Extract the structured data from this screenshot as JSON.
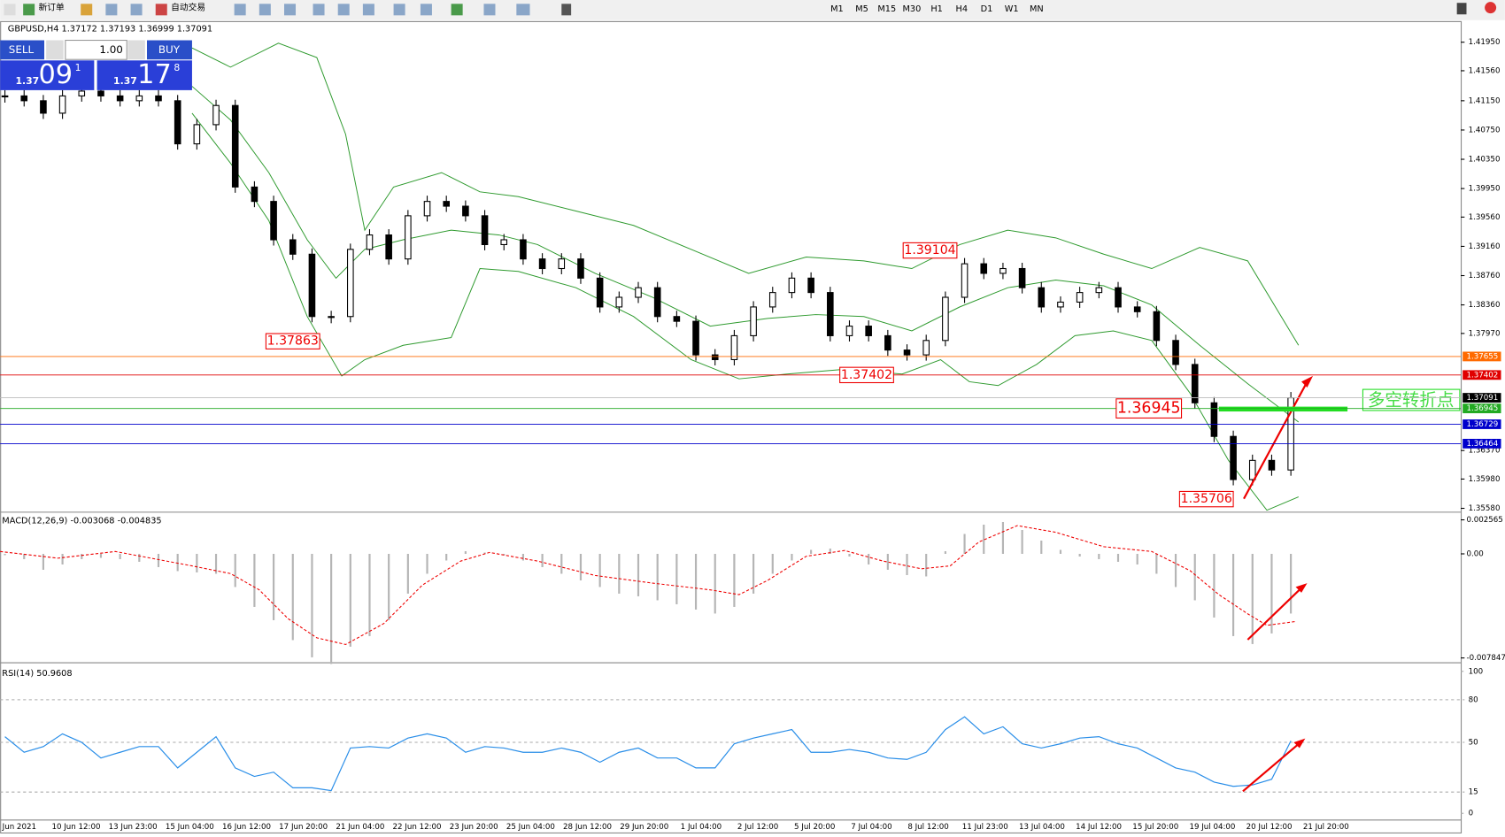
{
  "toolbar": {
    "new_order": "新订单",
    "auto_trading": "自动交易",
    "timeframes": [
      "M1",
      "M5",
      "M15",
      "M30",
      "H1",
      "H4",
      "D1",
      "W1",
      "MN"
    ]
  },
  "trade_panel": {
    "sell": "SELL",
    "buy": "BUY",
    "lots": "1.00",
    "bid_big": "1.37",
    "bid_pips": "09",
    "bid_point": "1",
    "ask_big": "1.37",
    "ask_pips": "17",
    "ask_point": "8"
  },
  "chart": {
    "header": "GBPUSD,H4  1.37172 1.37193 1.36999 1.37091",
    "price_ticks": [
      {
        "value": 1.4195,
        "label": "1.41950"
      },
      {
        "value": 1.4156,
        "label": "1.41560"
      },
      {
        "value": 1.4115,
        "label": "1.41150"
      },
      {
        "value": 1.4075,
        "label": "1.40750"
      },
      {
        "value": 1.4035,
        "label": "1.40350"
      },
      {
        "value": 1.3995,
        "label": "1.39950"
      },
      {
        "value": 1.3956,
        "label": "1.39560"
      },
      {
        "value": 1.3916,
        "label": "1.39160"
      },
      {
        "value": 1.3876,
        "label": "1.38760"
      },
      {
        "value": 1.3836,
        "label": "1.38360"
      },
      {
        "value": 1.3797,
        "label": "1.37970"
      },
      {
        "value": 1.3637,
        "label": "1.36370"
      },
      {
        "value": 1.3598,
        "label": "1.35980"
      },
      {
        "value": 1.3558,
        "label": "1.35580"
      }
    ],
    "closes": [
      1.41216,
      1.4115,
      1.4098,
      1.41216,
      1.41282,
      1.41216,
      1.4115,
      1.41216,
      1.4115,
      1.40561,
      1.40823,
      1.41085,
      1.39971,
      1.39774,
      1.3925,
      1.39053,
      1.38201,
      1.38201,
      1.39119,
      1.39316,
      1.38988,
      1.39578,
      1.39774,
      1.39709,
      1.39578,
      1.39184,
      1.3925,
      1.38988,
      1.38857,
      1.38988,
      1.38726,
      1.38332,
      1.38464,
      1.38595,
      1.38201,
      1.38136,
      1.37677,
      1.37612,
      1.37939,
      1.38332,
      1.38529,
      1.38726,
      1.38529,
      1.37939,
      1.3807,
      1.37939,
      1.37743,
      1.37677,
      1.37874,
      1.38464,
      1.38922,
      1.38791,
      1.38857,
      1.38595,
      1.38332,
      1.38398,
      1.38529,
      1.38595,
      1.38332,
      1.38267,
      1.37874,
      1.37546,
      1.37022,
      1.36563,
      1.35973,
      1.36235,
      1.36104,
      1.37091
    ],
    "levels": [
      {
        "value": 1.37655,
        "label": "1.37655",
        "color": "#ff6a00"
      },
      {
        "value": 1.37402,
        "label": "1.37402",
        "color": "#e00000"
      },
      {
        "value": 1.37091,
        "label": "1.37091",
        "color": "#000000"
      },
      {
        "value": 1.36945,
        "label": "1.36945",
        "color": "#22aa22"
      },
      {
        "value": 1.36729,
        "label": "1.36729",
        "color": "#0000cc"
      },
      {
        "value": 1.36464,
        "label": "1.36464",
        "color": "#0000cc"
      }
    ],
    "annotations": [
      {
        "value": 1.37863,
        "label": "1.37863"
      },
      {
        "value": 1.37402,
        "label": "1.37402"
      },
      {
        "value": 1.39104,
        "label": "1.39104"
      },
      {
        "value": 1.36945,
        "label": "1.36945"
      },
      {
        "value": 1.35706,
        "label": "1.35706"
      }
    ],
    "turning_point": "多空转折点",
    "time_labels": [
      "Jun 2021",
      "10 Jun 12:00",
      "13 Jun 23:00",
      "15 Jun 04:00",
      "16 Jun 12:00",
      "17 Jun 20:00",
      "21 Jun 04:00",
      "22 Jun 12:00",
      "23 Jun 20:00",
      "25 Jun 04:00",
      "28 Jun 12:00",
      "29 Jun 20:00",
      "1 Jul 04:00",
      "2 Jul 12:00",
      "5 Jul 20:00",
      "7 Jul 04:00",
      "8 Jul 12:00",
      "11 Jul 23:00",
      "13 Jul 04:00",
      "14 Jul 12:00",
      "15 Jul 20:00",
      "19 Jul 04:00",
      "20 Jul 12:00",
      "21 Jul 20:00"
    ]
  },
  "macd": {
    "label": "MACD(12,26,9) -0.003068 -0.004835",
    "ticks": [
      {
        "value": 0.002565,
        "label": "0.002565"
      },
      {
        "value": 0,
        "label": "0.00"
      },
      {
        "value": -0.007847,
        "label": "-0.007847"
      }
    ],
    "histogram": [
      -0.0001,
      -0.0004,
      -0.0012,
      -0.0008,
      -0.0004,
      -0.0003,
      -0.0004,
      -0.0006,
      -0.001,
      -0.0013,
      -0.0014,
      -0.0015,
      -0.0025,
      -0.004,
      -0.005,
      -0.0065,
      -0.0078,
      -0.0083,
      -0.007,
      -0.0062,
      -0.005,
      -0.003,
      -0.0015,
      -0.0005,
      0.0002,
      0.0001,
      -0.0001,
      -0.0005,
      -0.001,
      -0.0015,
      -0.002,
      -0.0025,
      -0.003,
      -0.0032,
      -0.0035,
      -0.0038,
      -0.0042,
      -0.0045,
      -0.004,
      -0.003,
      -0.0015,
      -0.0005,
      0.0003,
      0.0004,
      -0.0002,
      -0.0008,
      -0.0012,
      -0.0016,
      -0.0017,
      0.0002,
      0.0015,
      0.0022,
      0.0024,
      0.0018,
      0.001,
      0.0003,
      -0.0002,
      -0.0004,
      -0.0006,
      -0.0008,
      -0.0015,
      -0.0025,
      -0.0035,
      -0.0048,
      -0.0062,
      -0.0068,
      -0.006,
      -0.0045
    ]
  },
  "rsi": {
    "label": "RSI(14) 50.9608",
    "ticks": [
      100,
      80,
      50,
      15,
      0
    ],
    "values": [
      54,
      43,
      47,
      56,
      50,
      39,
      43,
      47,
      47,
      32,
      43,
      54,
      32,
      26,
      29,
      18,
      18,
      16,
      46,
      47,
      46,
      53,
      56,
      53,
      43,
      47,
      46,
      43,
      43,
      46,
      43,
      36,
      43,
      46,
      39,
      39,
      32,
      32,
      49,
      53,
      56,
      59,
      43,
      43,
      45,
      43,
      39,
      38,
      43,
      59,
      68,
      56,
      61,
      49,
      46,
      49,
      53,
      54,
      49,
      46,
      39,
      32,
      29,
      22,
      19,
      20,
      24,
      51
    ]
  }
}
